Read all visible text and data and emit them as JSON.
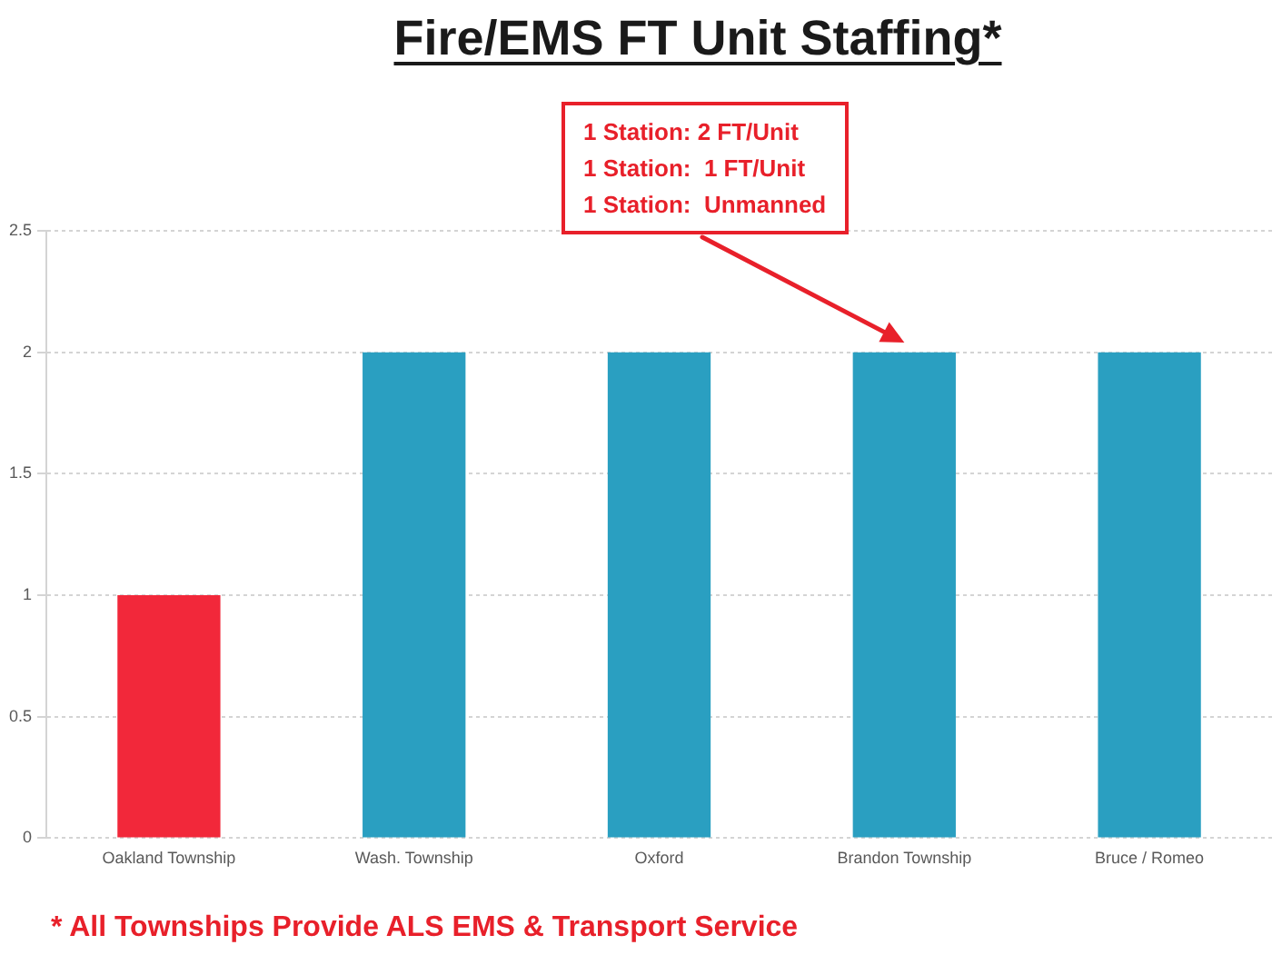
{
  "chart_data": {
    "type": "bar",
    "title": "Fire/EMS FT Unit Staffing*",
    "categories": [
      "Oakland Township",
      "Wash. Township",
      "Oxford",
      "Brandon Township",
      "Bruce / Romeo"
    ],
    "values": [
      1,
      2,
      2,
      2,
      2
    ],
    "colors": [
      "#f2283a",
      "#2a9fc1",
      "#2a9fc1",
      "#2a9fc1",
      "#2a9fc1"
    ],
    "ylim": [
      0,
      2.5
    ],
    "yticks": [
      0,
      0.5,
      1,
      1.5,
      2,
      2.5
    ],
    "grid": "y",
    "annotations": [
      "1 Station: 2 FT/Unit\n1 Station:  1 FT/Unit\n1 Station:  Unmanned",
      "* All Townships Provide ALS EMS & Transport Service"
    ]
  }
}
